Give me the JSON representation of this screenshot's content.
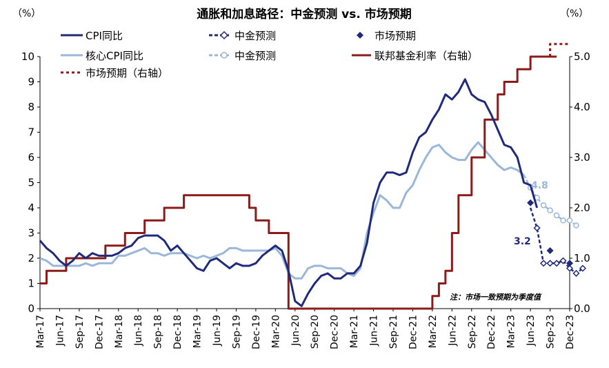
{
  "chart_data": {
    "type": "line",
    "title": "通胀和加息路径：中金预测 vs. 市场预期",
    "left_unit": "（%）",
    "right_unit": "（%）",
    "left_ylim": [
      0,
      10
    ],
    "right_ylim": [
      0.0,
      5.0
    ],
    "left_ticks": [
      "0",
      "1",
      "2",
      "3",
      "4",
      "5",
      "6",
      "7",
      "8",
      "9",
      "10"
    ],
    "right_ticks": [
      "0.0",
      "1.0",
      "2.0",
      "3.0",
      "4.0",
      "5.0"
    ],
    "x_start": "2017-03",
    "x_end": "2023-12",
    "x_ticks": [
      "Mar-17",
      "Jun-17",
      "Sep-17",
      "Dec-17",
      "Mar-18",
      "Jun-18",
      "Sep-18",
      "Dec-18",
      "Mar-19",
      "Jun-19",
      "Sep-19",
      "Dec-19",
      "Mar-20",
      "Jun-20",
      "Sep-20",
      "Dec-20",
      "Mar-21",
      "Jun-21",
      "Sep-21",
      "Dec-21",
      "Mar-22",
      "Jun-22",
      "Sep-22",
      "Dec-22",
      "Mar-23",
      "Jun-23",
      "Sep-23",
      "Dec-23"
    ],
    "note": "注：市场一致预期为季度值",
    "legend": {
      "cpi": "CPI同比",
      "cpi_cicc": "中金预测",
      "cpi_market": "市场预期",
      "core": "核心CPI同比",
      "core_cicc": "中金预测",
      "fed": "联邦基金利率（右轴）",
      "fed_market": "市场预期（右轴）"
    },
    "annotations": {
      "core_end_label": "4.8",
      "cpi_end_label": "3.2"
    },
    "colors": {
      "cpi": "#1f2a7a",
      "core": "#9ab6d8",
      "fed": "#8b1a1a"
    },
    "series": [
      {
        "name": "CPI同比",
        "axis": "left",
        "start": "2017-03",
        "values": [
          2.7,
          2.4,
          2.2,
          1.9,
          1.7,
          1.9,
          2.2,
          2.0,
          2.2,
          2.1,
          2.1,
          2.1,
          2.2,
          2.4,
          2.5,
          2.8,
          2.9,
          2.9,
          2.9,
          2.7,
          2.3,
          2.5,
          2.2,
          1.9,
          1.6,
          1.5,
          1.9,
          2.0,
          1.8,
          1.6,
          1.8,
          1.7,
          1.7,
          1.8,
          2.1,
          2.3,
          2.5,
          2.3,
          1.5,
          0.3,
          0.1,
          0.6,
          1.0,
          1.3,
          1.4,
          1.2,
          1.2,
          1.4,
          1.4,
          1.7,
          2.6,
          4.2,
          5.0,
          5.4,
          5.4,
          5.3,
          5.4,
          6.2,
          6.8,
          7.0,
          7.5,
          7.9,
          8.5,
          8.3,
          8.6,
          9.1,
          8.5,
          8.3,
          8.2,
          7.7,
          7.1,
          6.5,
          6.4,
          6.0,
          5.0,
          4.9,
          4.0
        ]
      },
      {
        "name": "中金预测",
        "axis": "left",
        "start": "2023-06",
        "marker": "open-diamond",
        "values": [
          4.0,
          3.2,
          1.8,
          1.8,
          1.8,
          1.9,
          1.6,
          1.4,
          1.6
        ]
      },
      {
        "name": "市场预期",
        "axis": "left",
        "marker": "filled-diamond",
        "points": [
          {
            "x": "2023-06",
            "y": 4.2
          },
          {
            "x": "2023-09",
            "y": 2.3
          },
          {
            "x": "2023-12",
            "y": 1.8
          }
        ]
      },
      {
        "name": "核心CPI同比",
        "axis": "left",
        "start": "2017-03",
        "values": [
          2.0,
          1.9,
          1.7,
          1.7,
          1.7,
          1.7,
          1.7,
          1.8,
          1.7,
          1.8,
          1.8,
          1.8,
          2.1,
          2.1,
          2.2,
          2.3,
          2.4,
          2.2,
          2.2,
          2.1,
          2.2,
          2.2,
          2.2,
          2.1,
          2.0,
          2.1,
          2.0,
          2.1,
          2.2,
          2.4,
          2.4,
          2.3,
          2.3,
          2.3,
          2.3,
          2.3,
          2.4,
          2.1,
          1.4,
          1.2,
          1.2,
          1.6,
          1.7,
          1.7,
          1.6,
          1.6,
          1.6,
          1.4,
          1.3,
          1.6,
          3.0,
          3.8,
          4.5,
          4.3,
          4.0,
          4.0,
          4.6,
          4.9,
          5.5,
          6.0,
          6.4,
          6.5,
          6.2,
          6.0,
          5.9,
          5.9,
          6.3,
          6.6,
          6.3,
          6.0,
          5.7,
          5.5,
          5.6,
          5.5,
          5.3
        ]
      },
      {
        "name": "中金预测",
        "axis": "left",
        "start": "2023-05",
        "marker": "open-circle",
        "values": [
          5.3,
          4.8,
          4.4,
          4.1,
          3.9,
          3.7,
          3.5,
          3.5,
          3.3
        ]
      },
      {
        "name": "联邦基金利率（右轴）",
        "axis": "right",
        "step": true,
        "start": "2017-03",
        "values": [
          0.5,
          0.75,
          0.75,
          0.75,
          1.0,
          1.0,
          1.0,
          1.0,
          1.0,
          1.0,
          1.25,
          1.25,
          1.25,
          1.5,
          1.5,
          1.5,
          1.75,
          1.75,
          1.75,
          2.0,
          2.0,
          2.0,
          2.25,
          2.25,
          2.25,
          2.25,
          2.25,
          2.25,
          2.25,
          2.25,
          2.25,
          2.25,
          2.0,
          1.75,
          1.75,
          1.5,
          1.5,
          1.5,
          0.0,
          0.0,
          0.0,
          0.0,
          0.0,
          0.0,
          0.0,
          0.0,
          0.0,
          0.0,
          0.0,
          0.0,
          0.0,
          0.0,
          0.0,
          0.0,
          0.0,
          0.0,
          0.0,
          0.0,
          0.0,
          0.0,
          0.25,
          0.5,
          0.75,
          1.5,
          2.25,
          2.25,
          3.0,
          3.0,
          3.75,
          3.75,
          4.25,
          4.5,
          4.5,
          4.75,
          4.75,
          5.0,
          5.0,
          5.0,
          5.0
        ]
      },
      {
        "name": "市场预期（右轴）",
        "axis": "right",
        "step": true,
        "dashed": true,
        "points": [
          {
            "x": "2023-09",
            "y": 5.0
          },
          {
            "x": "2023-09",
            "y": 5.25
          },
          {
            "x": "2023-12",
            "y": 5.25
          }
        ]
      }
    ]
  }
}
